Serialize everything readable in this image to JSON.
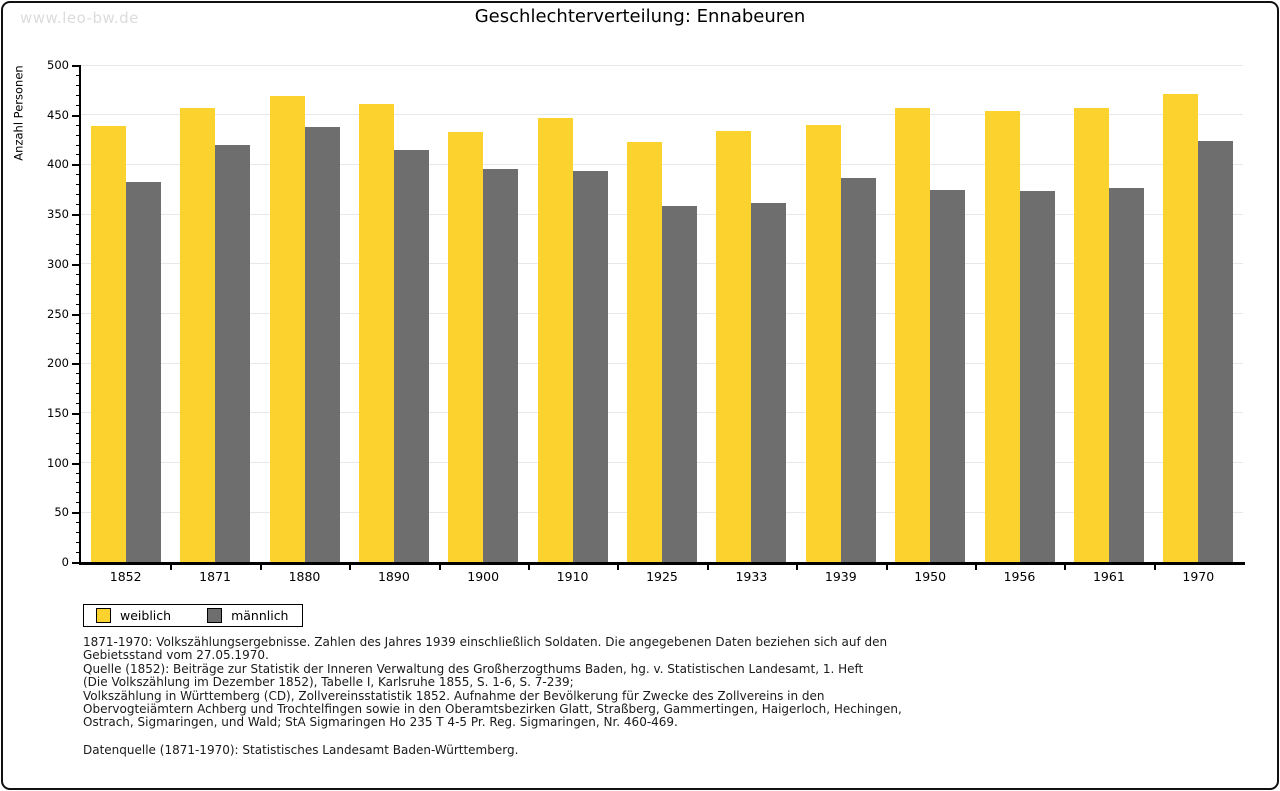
{
  "watermark": "www.leo-bw.de",
  "chart_data": {
    "type": "bar",
    "title": "Geschlechterverteilung: Ennabeuren",
    "ylabel": "Anzahl Personen",
    "xlabel": "",
    "ylim": [
      0,
      500
    ],
    "yticks_major": [
      0,
      50,
      100,
      150,
      200,
      250,
      300,
      350,
      400,
      450,
      500
    ],
    "ytick_minor_step": 10,
    "grid": "horizontal",
    "legend_position": "bottom-left",
    "categories": [
      "1852",
      "1871",
      "1880",
      "1890",
      "1900",
      "1910",
      "1925",
      "1933",
      "1939",
      "1950",
      "1956",
      "1961",
      "1970"
    ],
    "series": [
      {
        "name": "weiblich",
        "color": "#fcd22e",
        "values": [
          439,
          457,
          469,
          461,
          433,
          447,
          423,
          434,
          440,
          457,
          454,
          457,
          471
        ]
      },
      {
        "name": "männlich",
        "color": "#6e6e6e",
        "values": [
          382,
          420,
          438,
          415,
          395,
          393,
          358,
          361,
          386,
          374,
          373,
          376,
          424
        ]
      }
    ]
  },
  "footer": {
    "notes": "1871-1970: Volkszählungsergebnisse. Zahlen des Jahres 1939 einschließlich Soldaten. Die angegebenen Daten beziehen sich auf den\nGebietsstand vom 27.05.1970.\nQuelle (1852): Beiträge zur Statistik der Inneren Verwaltung des Großherzogthums Baden, hg. v. Statistischen Landesamt, 1. Heft\n(Die Volkszählung im Dezember 1852), Tabelle I, Karlsruhe 1855, S. 1-6, S. 7-239;\nVolkszählung in Württemberg (CD), Zollvereinsstatistik 1852. Aufnahme der Bevölkerung für Zwecke des Zollvereins in den\nObervogteiämtern Achberg und Trochtelfingen sowie in den Oberamtsbezirken Glatt, Straßberg, Gammertingen, Haigerloch, Hechingen,\nOstrach, Sigmaringen, und Wald; StA Sigmaringen Ho 235 T 4-5 Pr. Reg. Sigmaringen, Nr. 460-469.",
    "datasource": "Datenquelle (1871-1970): Statistisches Landesamt Baden-Württemberg."
  },
  "colors": {
    "bar_weiblich": "#fcd22e",
    "bar_männlich": "#6e6e6e",
    "gridline": "#e8e8e8",
    "axis": "#000000",
    "watermark": "#dcdcdc",
    "border": "#111111"
  }
}
